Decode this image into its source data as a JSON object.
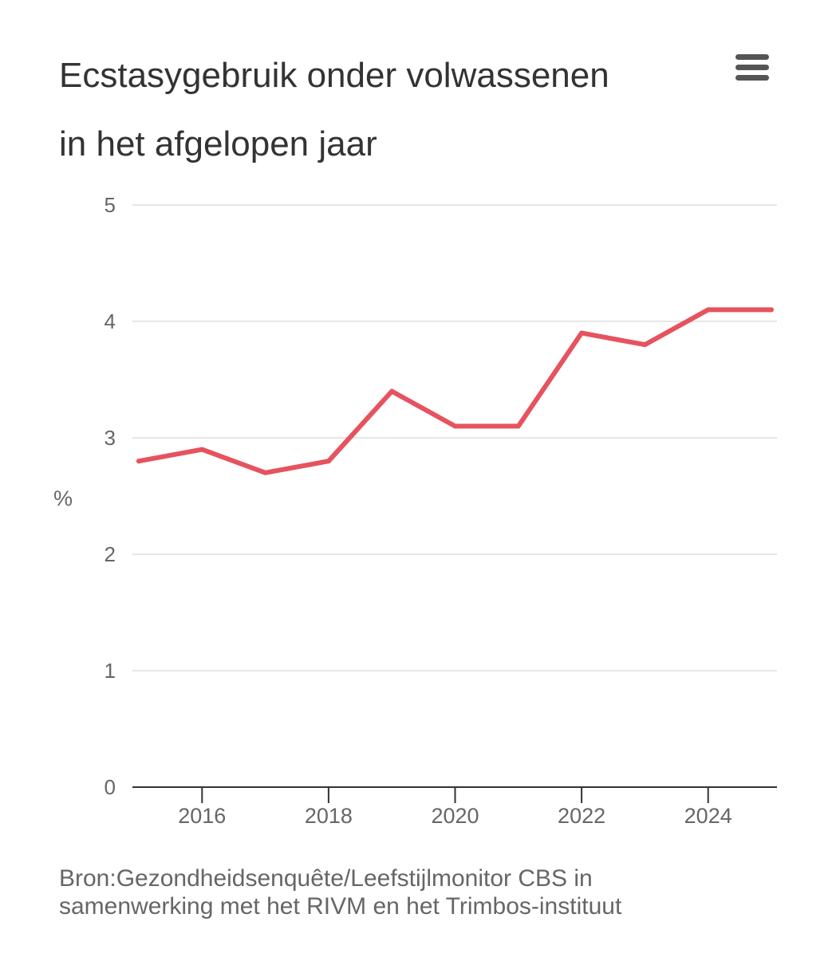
{
  "header": {
    "title_line1": "Ecstasygebruik onder volwassenen",
    "title_line2": "in het afgelopen jaar",
    "menu_icon": "hamburger-menu-icon"
  },
  "chart_data": {
    "type": "line",
    "title": "Ecstasygebruik onder volwassenen in het afgelopen jaar",
    "xlabel": "",
    "ylabel": "%",
    "x": [
      2015,
      2016,
      2017,
      2018,
      2019,
      2020,
      2021,
      2022,
      2023,
      2024,
      2025
    ],
    "series": [
      {
        "values": [
          2.8,
          2.9,
          2.7,
          2.8,
          3.4,
          3.1,
          3.1,
          3.9,
          3.8,
          4.1,
          4.1
        ],
        "color": "#e6535f"
      }
    ],
    "ylim": [
      0,
      5
    ],
    "yticks": [
      0,
      1,
      2,
      3,
      4,
      5
    ],
    "xlim": [
      2015,
      2025
    ],
    "xticks": [
      2016,
      2018,
      2020,
      2022,
      2024
    ],
    "grid": "horizontal",
    "legend": "none"
  },
  "footer": {
    "source_line1": "Bron:Gezondheidsenquête/Leefstijlmonitor CBS in",
    "source_line2": "samenwerking met het RIVM en het Trimbos-instituut"
  },
  "colors": {
    "line": "#e6535f",
    "grid": "#e6e6e6",
    "axis": "#333333",
    "text": "#333333",
    "muted": "#666666"
  }
}
